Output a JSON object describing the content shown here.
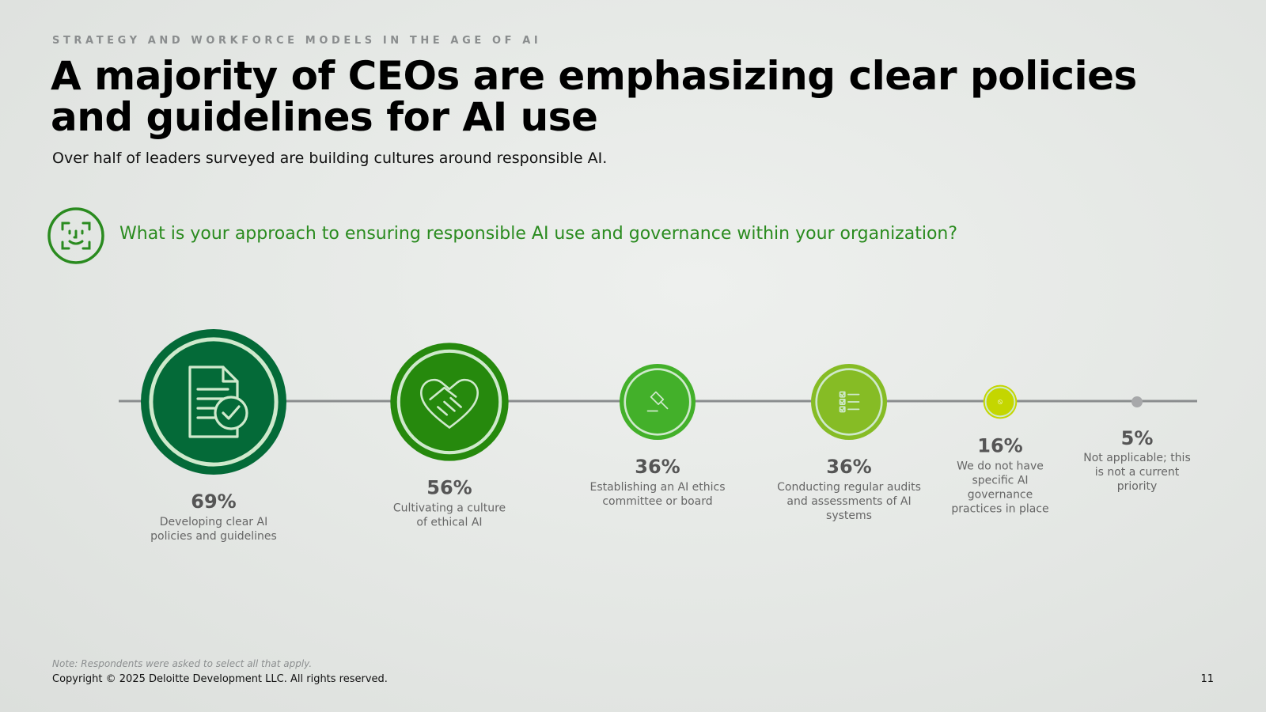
{
  "header": {
    "eyebrow": "STRATEGY AND WORKFORCE MODELS IN THE AGE OF AI",
    "title": "A majority of CEOs are emphasizing clear policies and guidelines for AI use",
    "subtitle": "Over half of leaders surveyed are building cultures around responsible AI."
  },
  "question": {
    "icon": "face-scan-icon",
    "text": "What is your approach to ensuring responsible AI use and governance within your organization?",
    "color": "#2a8b1f"
  },
  "chart_data": {
    "type": "bubble-timeline",
    "unit": "%",
    "categories": [
      "Developing clear AI policies and guidelines",
      "Cultivating a culture of ethical AI",
      "Establishing an AI ethics committee or board",
      "Conducting regular audits and assessments of AI systems",
      "We do not have specific AI governance practices in place",
      "Not applicable; this is not a current priority"
    ],
    "values": [
      69,
      56,
      36,
      36,
      16,
      5
    ],
    "labels": [
      "69%",
      "56%",
      "36%",
      "36%",
      "16%",
      "5%"
    ],
    "label_lines": [
      [
        "Developing clear AI",
        "policies and guidelines"
      ],
      [
        "Cultivating a culture",
        "of ethical AI"
      ],
      [
        "Establishing an AI ethics",
        "committee or board"
      ],
      [
        "Conducting regular audits",
        "and assessments of AI",
        "systems"
      ],
      [
        "We do not have",
        "specific AI",
        "governance",
        "practices in place"
      ],
      [
        "Not applicable; this",
        "is not a current",
        "priority"
      ]
    ],
    "icons": [
      "document-check-icon",
      "handshake-heart-icon",
      "gavel-icon",
      "checklist-icon",
      "prohibited-icon",
      "dot-icon"
    ],
    "colors": [
      "#046a38",
      "#26890d",
      "#43b02a",
      "#86bc25",
      "#c4d600",
      "#a7a8aa"
    ]
  },
  "footer": {
    "note": "Note: Respondents were asked to select all that apply.",
    "copyright": "Copyright © 2025 Deloitte Development LLC. All rights reserved.",
    "page_number": "11"
  }
}
